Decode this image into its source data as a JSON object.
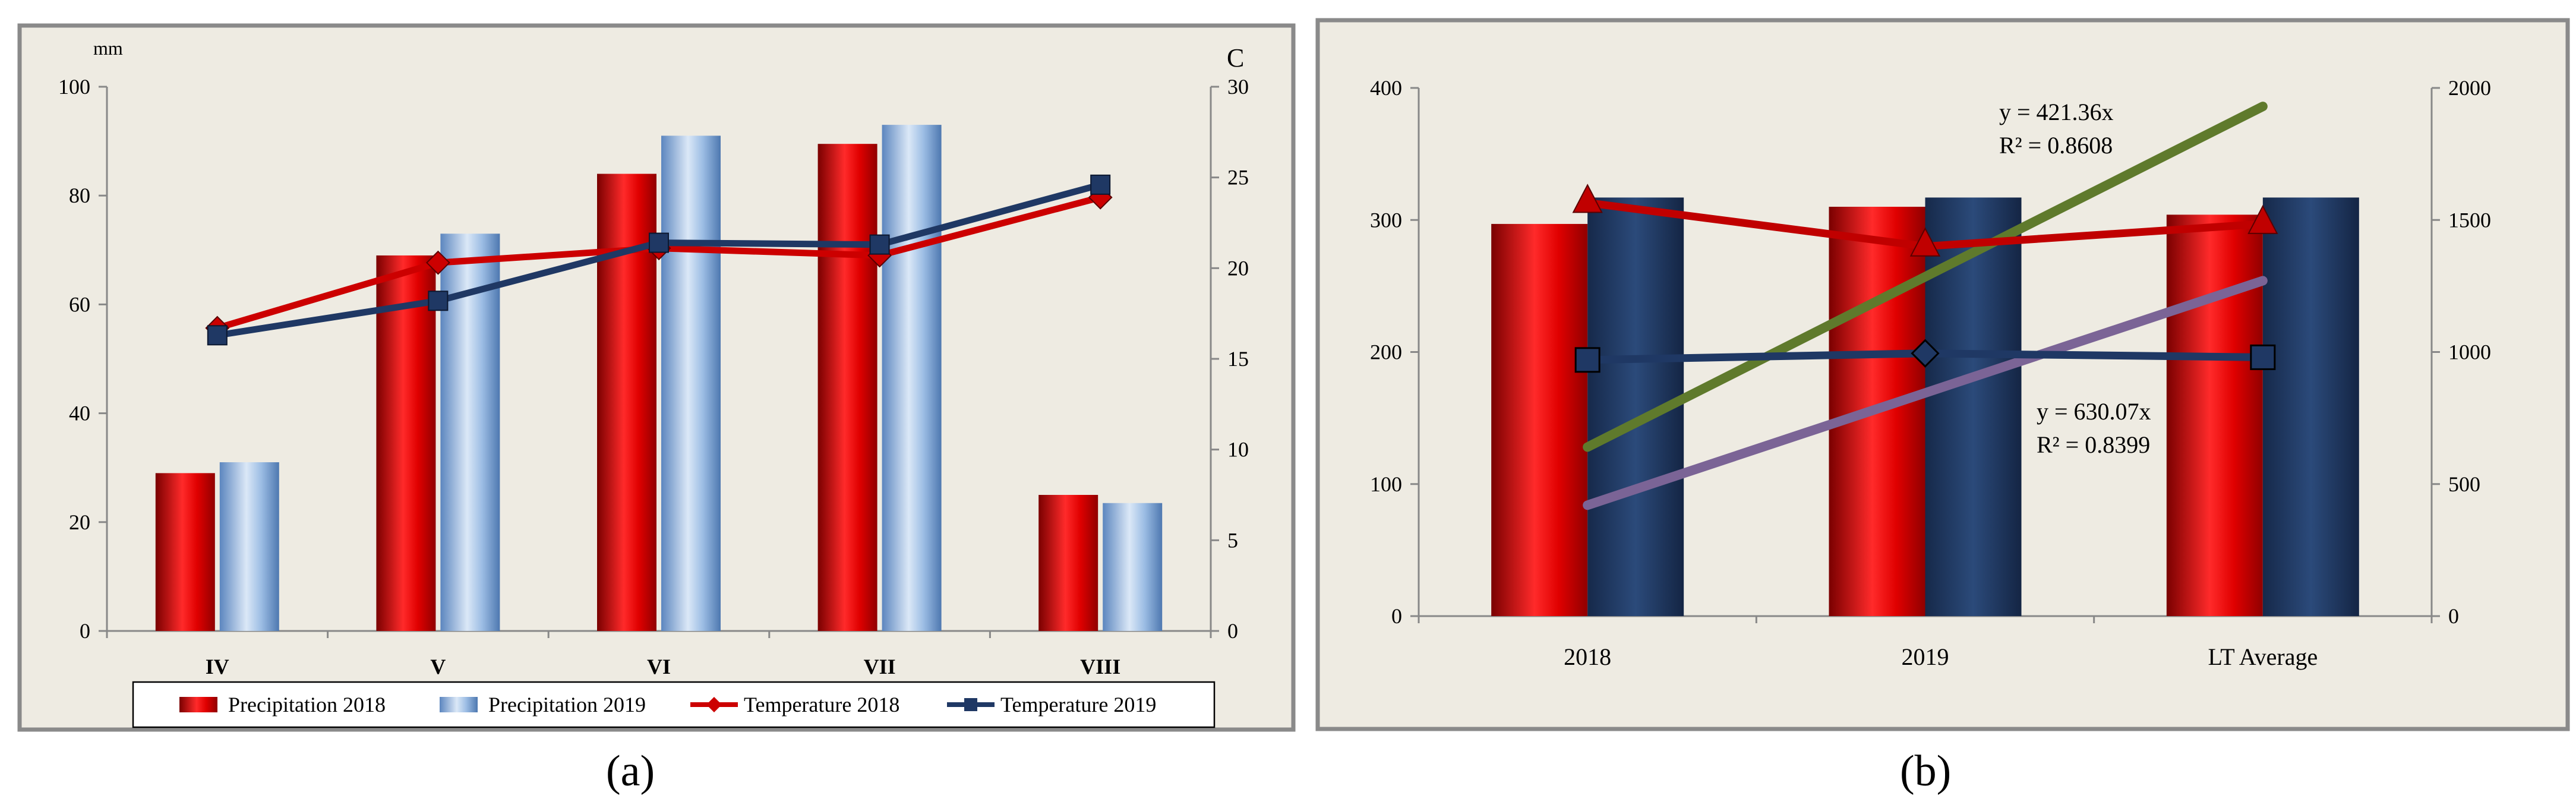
{
  "chart_data": [
    {
      "panel_label": "(a)",
      "type": "bar+line",
      "categories": [
        "IV",
        "V",
        "VI",
        "VII",
        "VIII"
      ],
      "y_left": {
        "label": "mm",
        "range": [
          0,
          100
        ],
        "ticks": [
          "0",
          "20",
          "40",
          "60",
          "80",
          "100"
        ]
      },
      "y_right": {
        "label": "C",
        "range": [
          0,
          30
        ],
        "ticks": [
          "0",
          "5",
          "10",
          "15",
          "20",
          "25",
          "30"
        ]
      },
      "bar_series": [
        {
          "name": "Precipitation 2018",
          "axis": "left",
          "color": "#e00000",
          "values": [
            29,
            69,
            84,
            89.5,
            25
          ]
        },
        {
          "name": "Precipitation 2019",
          "axis": "left",
          "color": "#7da7da",
          "values": [
            31,
            73,
            91,
            93,
            23.5
          ]
        }
      ],
      "line_series": [
        {
          "name": "Temperature 2018",
          "axis": "right",
          "color": "#cc0000",
          "marker": "diamond",
          "values": [
            16.7,
            20.3,
            21.1,
            20.7,
            23.9
          ]
        },
        {
          "name": "Temperature 2019",
          "axis": "right",
          "color": "#1f3864",
          "marker": "square",
          "values": [
            16.3,
            18.2,
            21.4,
            21.3,
            24.6
          ]
        }
      ],
      "legend": [
        "Precipitation 2018",
        "Precipitation 2019",
        "Temperature 2018",
        "Temperature 2019"
      ]
    },
    {
      "panel_label": "(b)",
      "type": "bar+line",
      "categories": [
        "2018",
        "2019",
        "LT Average"
      ],
      "y_left": {
        "range": [
          0,
          400
        ],
        "ticks": [
          "0",
          "100",
          "200",
          "300",
          "400"
        ]
      },
      "y_right": {
        "range": [
          0,
          2000
        ],
        "ticks": [
          "0",
          "500",
          "1000",
          "1500",
          "2000"
        ]
      },
      "bar_series": [
        {
          "name": "red bars",
          "axis": "left",
          "color": "#e00000",
          "values": [
            297,
            310,
            304
          ]
        },
        {
          "name": "navy bars",
          "axis": "left",
          "color": "#1f3864",
          "values": [
            317,
            317,
            317
          ]
        }
      ],
      "line_series": [
        {
          "name": "red line",
          "axis": "left",
          "color": "#c00000",
          "marker": "triangle",
          "values": [
            313,
            280,
            297
          ]
        },
        {
          "name": "navy line",
          "axis": "left",
          "color": "#1f3864",
          "marker": "square",
          "values": [
            194,
            199,
            196
          ]
        }
      ],
      "trendlines": [
        {
          "name": "green trend",
          "axis": "left",
          "color": "#5f7a2c",
          "values": [
            128,
            386
          ]
        },
        {
          "name": "purple trend",
          "axis": "left",
          "color": "#7b6496",
          "values": [
            84,
            254
          ]
        }
      ],
      "annotations": [
        {
          "equation": "y = 421.36x",
          "r2": "R² = 0.8608"
        },
        {
          "equation": "y = 630.07x",
          "r2": "R² = 0.8399"
        }
      ]
    }
  ]
}
